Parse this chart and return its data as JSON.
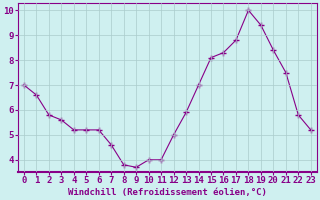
{
  "x": [
    0,
    1,
    2,
    3,
    4,
    5,
    6,
    7,
    8,
    9,
    10,
    11,
    12,
    13,
    14,
    15,
    16,
    17,
    18,
    19,
    20,
    21,
    22,
    23
  ],
  "y": [
    7.0,
    6.6,
    5.8,
    5.6,
    5.2,
    5.2,
    5.2,
    4.6,
    3.8,
    3.7,
    4.0,
    4.0,
    5.0,
    5.9,
    7.0,
    8.1,
    8.3,
    8.8,
    10.0,
    9.4,
    8.4,
    7.5,
    5.8,
    5.2
  ],
  "line_color": "#880088",
  "marker": "+",
  "marker_size": 4,
  "marker_lw": 1.0,
  "bg_color": "#cff0f0",
  "grid_color": "#aacccc",
  "xlabel": "Windchill (Refroidissement éolien,°C)",
  "xlim_min": -0.5,
  "xlim_max": 23.5,
  "ylim_min": 3.5,
  "ylim_max": 10.3,
  "yticks": [
    4,
    5,
    6,
    7,
    8,
    9,
    10
  ],
  "tick_color": "#880088",
  "axis_label_fontsize": 6.5,
  "tick_fontsize": 6.5,
  "line_width": 0.8
}
